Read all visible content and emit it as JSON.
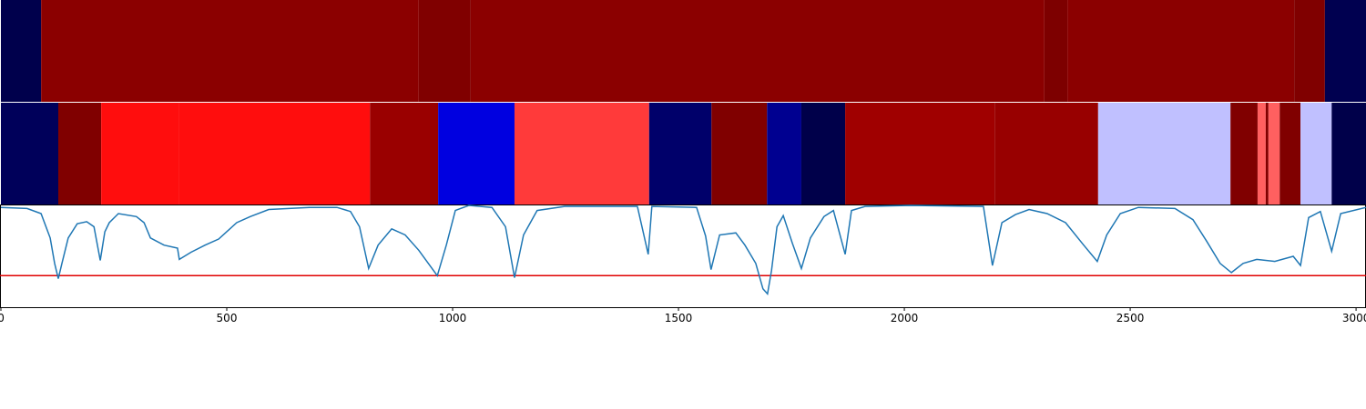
{
  "chart_data": {
    "type": "line",
    "xlim": [
      0,
      3022
    ],
    "xticks": [
      0,
      500,
      1000,
      1500,
      2000,
      2500,
      3000
    ],
    "ylim": [
      0,
      1
    ],
    "color": "#1f77b4",
    "threshold": 0.31,
    "threshold_color": "#e00000",
    "tracks": [
      [
        {
          "start": 0,
          "end": 89,
          "color": "#00004c"
        },
        {
          "start": 89,
          "end": 925,
          "color": "#8b0000"
        },
        {
          "start": 925,
          "end": 1040,
          "color": "#800000"
        },
        {
          "start": 1040,
          "end": 2310,
          "color": "#8b0000"
        },
        {
          "start": 2310,
          "end": 2361,
          "color": "#7d0000"
        },
        {
          "start": 2361,
          "end": 2863,
          "color": "#8b0000"
        },
        {
          "start": 2863,
          "end": 2931,
          "color": "#800000"
        },
        {
          "start": 2931,
          "end": 3022,
          "color": "#000050"
        }
      ],
      [
        {
          "start": 0,
          "end": 127,
          "color": "#00005a"
        },
        {
          "start": 127,
          "end": 222,
          "color": "#800000"
        },
        {
          "start": 222,
          "end": 395,
          "color": "#ff0d0d"
        },
        {
          "start": 395,
          "end": 817,
          "color": "#ff0d0d"
        },
        {
          "start": 817,
          "end": 968,
          "color": "#9a0000"
        },
        {
          "start": 968,
          "end": 1137,
          "color": "#0000e0"
        },
        {
          "start": 1137,
          "end": 1435,
          "color": "#ff3a3a"
        },
        {
          "start": 1435,
          "end": 1573,
          "color": "#00006a"
        },
        {
          "start": 1573,
          "end": 1696,
          "color": "#800000"
        },
        {
          "start": 1696,
          "end": 1772,
          "color": "#000090"
        },
        {
          "start": 1772,
          "end": 1869,
          "color": "#00004a"
        },
        {
          "start": 1869,
          "end": 2200,
          "color": "#a00000"
        },
        {
          "start": 2200,
          "end": 2429,
          "color": "#980000"
        },
        {
          "start": 2429,
          "end": 2722,
          "color": "#c0c0ff"
        },
        {
          "start": 2722,
          "end": 2782,
          "color": "#800000"
        },
        {
          "start": 2782,
          "end": 2800,
          "color": "#ff6060"
        },
        {
          "start": 2800,
          "end": 2806,
          "color": "#800000"
        },
        {
          "start": 2806,
          "end": 2831,
          "color": "#ff6060"
        },
        {
          "start": 2831,
          "end": 2877,
          "color": "#800000"
        },
        {
          "start": 2877,
          "end": 2946,
          "color": "#c0c0ff"
        },
        {
          "start": 2946,
          "end": 3022,
          "color": "#00004a"
        }
      ]
    ],
    "x": [
      0,
      58,
      89,
      109,
      119,
      127,
      135,
      149,
      169,
      190,
      206,
      220,
      230,
      240,
      260,
      300,
      317,
      331,
      361,
      391,
      395,
      421,
      452,
      482,
      522,
      552,
      593,
      683,
      744,
      774,
      794,
      814,
      835,
      865,
      895,
      925,
      966,
      986,
      1006,
      1036,
      1087,
      1117,
      1137,
      1157,
      1187,
      1248,
      1409,
      1433,
      1441,
      1540,
      1560,
      1572,
      1591,
      1627,
      1647,
      1671,
      1687,
      1697,
      1706,
      1718,
      1732,
      1752,
      1772,
      1792,
      1822,
      1843,
      1869,
      1883,
      1913,
      2014,
      2175,
      2195,
      2216,
      2246,
      2276,
      2316,
      2357,
      2397,
      2427,
      2448,
      2478,
      2518,
      2599,
      2639,
      2669,
      2699,
      2724,
      2750,
      2780,
      2820,
      2861,
      2877,
      2895,
      2921,
      2946,
      2966,
      3022
    ],
    "values": [
      0.98,
      0.97,
      0.92,
      0.68,
      0.43,
      0.28,
      0.43,
      0.68,
      0.82,
      0.84,
      0.79,
      0.46,
      0.74,
      0.83,
      0.92,
      0.89,
      0.83,
      0.68,
      0.61,
      0.58,
      0.47,
      0.54,
      0.61,
      0.67,
      0.83,
      0.89,
      0.96,
      0.98,
      0.98,
      0.94,
      0.79,
      0.38,
      0.61,
      0.77,
      0.71,
      0.56,
      0.31,
      0.61,
      0.95,
      1.0,
      0.98,
      0.79,
      0.29,
      0.71,
      0.95,
      0.99,
      0.99,
      0.52,
      0.99,
      0.98,
      0.7,
      0.37,
      0.71,
      0.73,
      0.61,
      0.43,
      0.18,
      0.13,
      0.36,
      0.79,
      0.9,
      0.63,
      0.38,
      0.68,
      0.89,
      0.95,
      0.52,
      0.95,
      0.99,
      1.0,
      0.99,
      0.41,
      0.83,
      0.91,
      0.96,
      0.92,
      0.83,
      0.61,
      0.45,
      0.71,
      0.92,
      0.98,
      0.97,
      0.86,
      0.65,
      0.43,
      0.34,
      0.43,
      0.47,
      0.45,
      0.5,
      0.41,
      0.88,
      0.94,
      0.55,
      0.92,
      0.98
    ]
  }
}
